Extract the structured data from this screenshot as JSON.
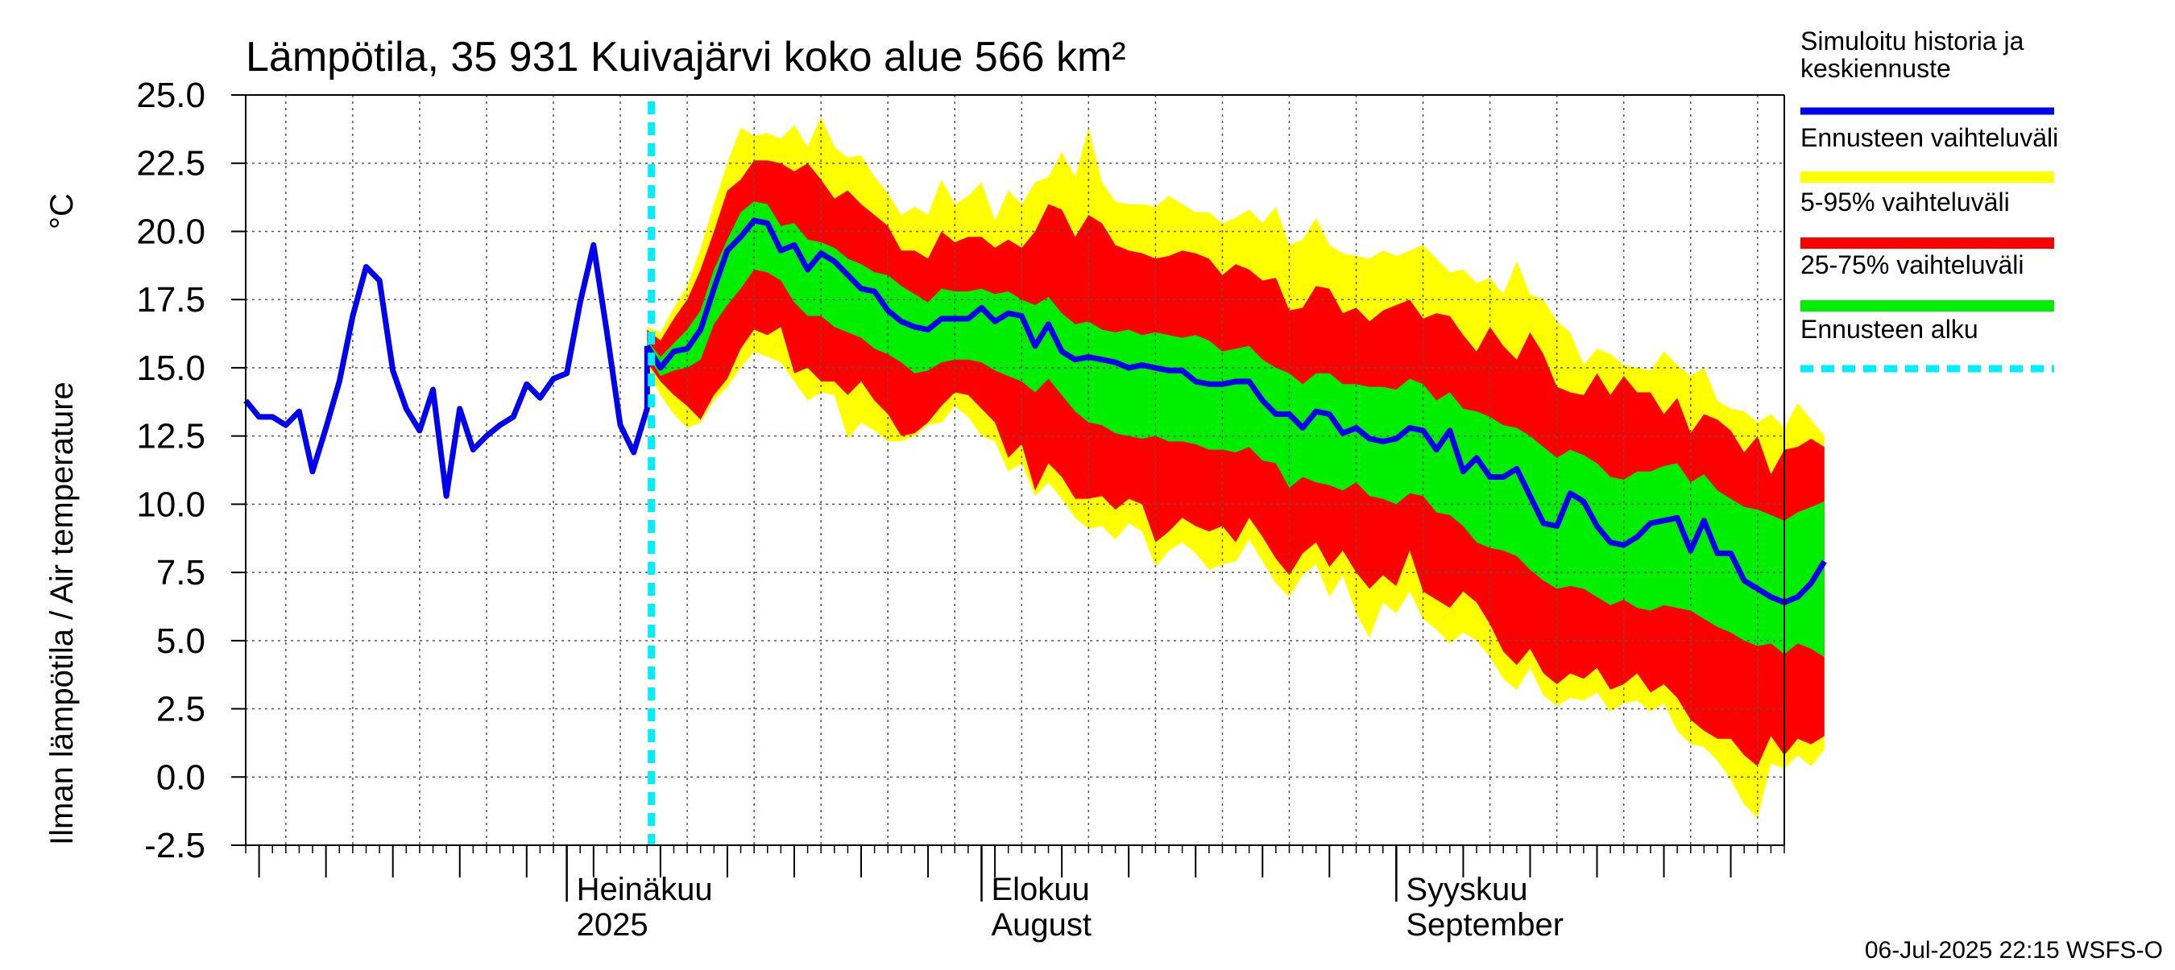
{
  "chart_data": {
    "type": "area",
    "title": "Lämpötila, 35 931 Kuivajärvi koko alue 566 km²",
    "ylabel": "Ilman lämpötila / Air temperature",
    "yunit": "°C",
    "ylim": [
      -2.5,
      25.0
    ],
    "yticks": [
      "25.0",
      "22.5",
      "20.0",
      "17.5",
      "15.0",
      "12.5",
      "10.0",
      "7.5",
      "5.0",
      "2.5",
      "0.0",
      "-2.5"
    ],
    "ytick_values": [
      25.0,
      22.5,
      20.0,
      17.5,
      15.0,
      12.5,
      10.0,
      7.5,
      5.0,
      2.5,
      0.0,
      -2.5
    ],
    "xlim": [
      "2025-06-07",
      "2025-09-30"
    ],
    "x_labels": [
      {
        "date": "2025-07-01",
        "line1": "Heinäkuu",
        "line2": "2025"
      },
      {
        "date": "2025-08-01",
        "line1": "Elokuu",
        "line2": "August"
      },
      {
        "date": "2025-09-01",
        "line1": "Syyskuu",
        "line2": "September"
      }
    ],
    "forecast_start": "2025-07-06",
    "grid": true,
    "legend_position": "right",
    "legend": [
      {
        "label": "Simuloitu historia ja keskiennuste",
        "lines": [
          "Simuloitu historia ja",
          "keskiennuste"
        ],
        "color": "#0000ee",
        "style": "line"
      },
      {
        "label": "Ennusteen vaihteluväli",
        "lines": [
          "Ennusteen vaihteluväli"
        ],
        "color": "#ffff00",
        "style": "band"
      },
      {
        "label": "5-95% vaihteluväli",
        "lines": [
          "5-95% vaihteluväli"
        ],
        "color": "#ff0000",
        "style": "band"
      },
      {
        "label": "25-75% vaihteluväli",
        "lines": [
          "25-75% vaihteluväli"
        ],
        "color": "#00ee00",
        "style": "band"
      },
      {
        "label": "Ennusteen alku",
        "lines": [
          "Ennusteen alku"
        ],
        "color": "#00eeff",
        "style": "dashed"
      }
    ],
    "x_start": "2025-06-07",
    "history_y": [
      13.8,
      13.2,
      13.2,
      12.9,
      13.4,
      11.2,
      12.8,
      14.5,
      16.9,
      18.7,
      18.2,
      14.9,
      13.5,
      12.7,
      14.2,
      10.3,
      13.5,
      12.0,
      12.5,
      12.9,
      13.2,
      14.4,
      13.9,
      14.6,
      14.8,
      17.4,
      19.5,
      16.3,
      12.9,
      11.9,
      13.5
    ],
    "forecast_x_start": "2025-07-07",
    "median": [
      15.8,
      15.0,
      15.6,
      15.7,
      16.4,
      17.9,
      19.3,
      19.8,
      20.4,
      20.3,
      19.3,
      19.5,
      18.6,
      19.2,
      18.9,
      18.4,
      17.9,
      17.8,
      17.1,
      16.7,
      16.5,
      16.4,
      16.8,
      16.8,
      16.8,
      17.2,
      16.7,
      17.0,
      16.9,
      15.8,
      16.6,
      15.6,
      15.3,
      15.4,
      15.3,
      15.2,
      15.0,
      15.1,
      15.0,
      14.9,
      14.9,
      14.5,
      14.4,
      14.4,
      14.5,
      14.5,
      13.8,
      13.3,
      13.3,
      12.8,
      13.4,
      13.3,
      12.6,
      12.8,
      12.4,
      12.3,
      12.4,
      12.8,
      12.7,
      12.0,
      12.7,
      11.2,
      11.7,
      11.0,
      11.0,
      11.3,
      10.3,
      9.3,
      9.2,
      10.4,
      10.1,
      9.2,
      8.6,
      8.5,
      8.8,
      9.3,
      9.4,
      9.5,
      8.3,
      9.4,
      8.2,
      8.2,
      7.2,
      6.9,
      6.6,
      6.4,
      6.6,
      7.1,
      7.9
    ],
    "p25": [
      15.5,
      14.7,
      14.9,
      15.0,
      15.3,
      16.6,
      17.3,
      17.9,
      18.6,
      18.5,
      18.2,
      17.4,
      16.9,
      16.9,
      16.5,
      16.3,
      16.1,
      15.7,
      15.5,
      15.2,
      14.8,
      14.9,
      15.2,
      15.3,
      15.3,
      15.2,
      14.9,
      14.7,
      14.5,
      14.1,
      14.6,
      14.0,
      13.4,
      13.0,
      12.9,
      12.6,
      12.5,
      12.4,
      12.5,
      12.3,
      12.3,
      12.2,
      12.0,
      12.0,
      11.9,
      12.1,
      11.6,
      11.5,
      10.6,
      11.0,
      10.8,
      10.7,
      10.5,
      10.8,
      10.3,
      10.2,
      10.0,
      10.4,
      10.3,
      9.7,
      9.6,
      9.2,
      8.6,
      8.4,
      8.3,
      8.1,
      7.6,
      7.2,
      6.9,
      7.0,
      6.9,
      6.6,
      6.3,
      6.5,
      6.2,
      6.1,
      6.3,
      6.2,
      6.1,
      5.8,
      5.5,
      5.3,
      5.0,
      4.8,
      4.9,
      4.5,
      4.9,
      4.7,
      4.4
    ],
    "p75": [
      16.0,
      15.4,
      15.9,
      16.4,
      17.1,
      18.6,
      19.7,
      20.7,
      21.1,
      21.0,
      20.2,
      20.3,
      19.7,
      19.6,
      19.4,
      19.0,
      18.8,
      18.5,
      18.4,
      18.0,
      17.7,
      17.4,
      17.9,
      17.8,
      17.8,
      17.9,
      17.7,
      17.8,
      17.5,
      17.3,
      17.6,
      17.0,
      16.6,
      16.7,
      16.4,
      16.3,
      16.4,
      16.2,
      16.3,
      16.2,
      16.1,
      16.2,
      16.0,
      15.6,
      15.7,
      15.8,
      15.3,
      15.0,
      14.8,
      14.4,
      14.8,
      14.8,
      14.4,
      14.4,
      14.3,
      14.3,
      14.2,
      14.6,
      14.4,
      13.8,
      14.1,
      13.5,
      13.4,
      13.2,
      12.9,
      12.8,
      12.5,
      12.1,
      11.7,
      12.0,
      11.8,
      11.5,
      11.0,
      10.9,
      11.2,
      11.2,
      11.4,
      11.5,
      10.8,
      11.1,
      10.5,
      10.2,
      9.9,
      9.8,
      9.6,
      9.4,
      9.7,
      9.9,
      10.1
    ],
    "p5": [
      15.2,
      14.5,
      14.0,
      13.6,
      13.1,
      14.0,
      14.6,
      15.7,
      16.4,
      16.2,
      16.5,
      14.8,
      15.0,
      14.5,
      14.5,
      14.0,
      14.5,
      13.8,
      13.3,
      12.5,
      12.6,
      13.0,
      13.6,
      14.1,
      14.0,
      13.5,
      13.0,
      11.7,
      12.2,
      10.5,
      11.5,
      11.0,
      10.2,
      10.2,
      10.3,
      9.8,
      10.2,
      10.0,
      8.6,
      9.0,
      9.5,
      9.2,
      9.0,
      9.2,
      8.6,
      9.5,
      8.8,
      8.0,
      7.4,
      8.2,
      8.6,
      7.7,
      8.3,
      7.5,
      6.9,
      7.4,
      7.0,
      8.3,
      6.8,
      6.5,
      6.2,
      6.8,
      6.4,
      5.6,
      4.6,
      4.1,
      4.7,
      3.8,
      3.4,
      3.8,
      3.6,
      4.0,
      3.2,
      3.4,
      3.8,
      3.1,
      3.4,
      2.9,
      2.1,
      1.7,
      1.4,
      1.4,
      0.8,
      0.4,
      1.5,
      0.8,
      1.4,
      1.2,
      1.5
    ],
    "p95": [
      16.4,
      16.0,
      16.8,
      17.5,
      18.6,
      20.0,
      21.5,
      21.9,
      22.6,
      22.6,
      22.5,
      22.2,
      22.5,
      21.9,
      21.2,
      21.5,
      21.0,
      20.6,
      20.2,
      19.3,
      19.3,
      19.0,
      20.0,
      19.6,
      19.8,
      19.8,
      19.4,
      19.7,
      19.4,
      20.0,
      21.0,
      20.8,
      19.8,
      20.6,
      20.3,
      19.5,
      19.3,
      19.2,
      19.0,
      19.1,
      19.3,
      19.2,
      19.0,
      18.4,
      18.8,
      18.6,
      18.2,
      18.3,
      17.1,
      17.2,
      18.0,
      17.9,
      17.0,
      17.2,
      16.7,
      17.1,
      17.3,
      17.5,
      16.8,
      17.0,
      16.9,
      16.2,
      15.6,
      16.5,
      15.8,
      15.3,
      16.3,
      15.5,
      14.3,
      14.1,
      14.0,
      14.8,
      14.0,
      14.7,
      14.1,
      14.1,
      13.3,
      13.9,
      12.6,
      13.3,
      13.1,
      12.7,
      11.9,
      12.5,
      11.1,
      12.0,
      12.1,
      12.4,
      12.1
    ],
    "min": [
      15.0,
      14.0,
      13.3,
      12.8,
      13.0,
      13.8,
      14.3,
      15.0,
      15.6,
      15.4,
      15.2,
      14.5,
      13.8,
      14.1,
      14.0,
      12.4,
      13.0,
      12.7,
      12.3,
      12.3,
      12.5,
      12.9,
      13.0,
      13.6,
      13.2,
      12.5,
      12.3,
      11.2,
      11.5,
      10.3,
      10.8,
      10.2,
      9.5,
      9.1,
      9.2,
      8.7,
      9.3,
      9.0,
      7.7,
      8.3,
      8.6,
      8.2,
      7.6,
      7.8,
      7.9,
      8.7,
      7.9,
      7.1,
      6.6,
      7.4,
      7.8,
      6.6,
      7.4,
      6.0,
      5.1,
      6.4,
      6.0,
      6.8,
      5.8,
      5.4,
      4.9,
      5.3,
      5.0,
      4.4,
      3.6,
      3.2,
      4.0,
      3.0,
      2.6,
      2.9,
      2.8,
      3.1,
      2.4,
      2.7,
      2.8,
      2.4,
      2.7,
      1.7,
      1.2,
      1.1,
      0.6,
      -0.1,
      -1.0,
      -1.5,
      0.5,
      0.3,
      0.8,
      0.4,
      1.0
    ],
    "max": [
      16.5,
      16.3,
      17.2,
      18.0,
      19.4,
      21.0,
      22.5,
      23.8,
      23.5,
      23.6,
      23.4,
      23.9,
      23.1,
      24.2,
      23.1,
      22.7,
      22.8,
      22.0,
      21.4,
      20.6,
      20.9,
      20.6,
      21.9,
      21.0,
      21.3,
      21.8,
      20.4,
      21.5,
      21.0,
      21.8,
      22.0,
      22.9,
      22.0,
      23.8,
      21.8,
      21.1,
      21.0,
      21.0,
      20.9,
      21.3,
      21.0,
      20.7,
      20.7,
      20.3,
      20.5,
      20.8,
      20.3,
      20.9,
      19.5,
      19.7,
      20.5,
      19.5,
      19.2,
      19.1,
      19.0,
      19.3,
      19.1,
      19.3,
      19.5,
      19.0,
      18.5,
      18.6,
      18.1,
      18.3,
      17.7,
      18.9,
      17.7,
      17.5,
      16.7,
      16.3,
      15.1,
      15.7,
      15.5,
      15.1,
      15.0,
      14.9,
      15.6,
      15.1,
      14.7,
      15.0,
      13.8,
      13.5,
      13.4,
      13.0,
      13.3,
      12.8,
      13.7,
      13.1,
      12.5
    ]
  },
  "footer": "06-Jul-2025 22:15 WSFS-O"
}
